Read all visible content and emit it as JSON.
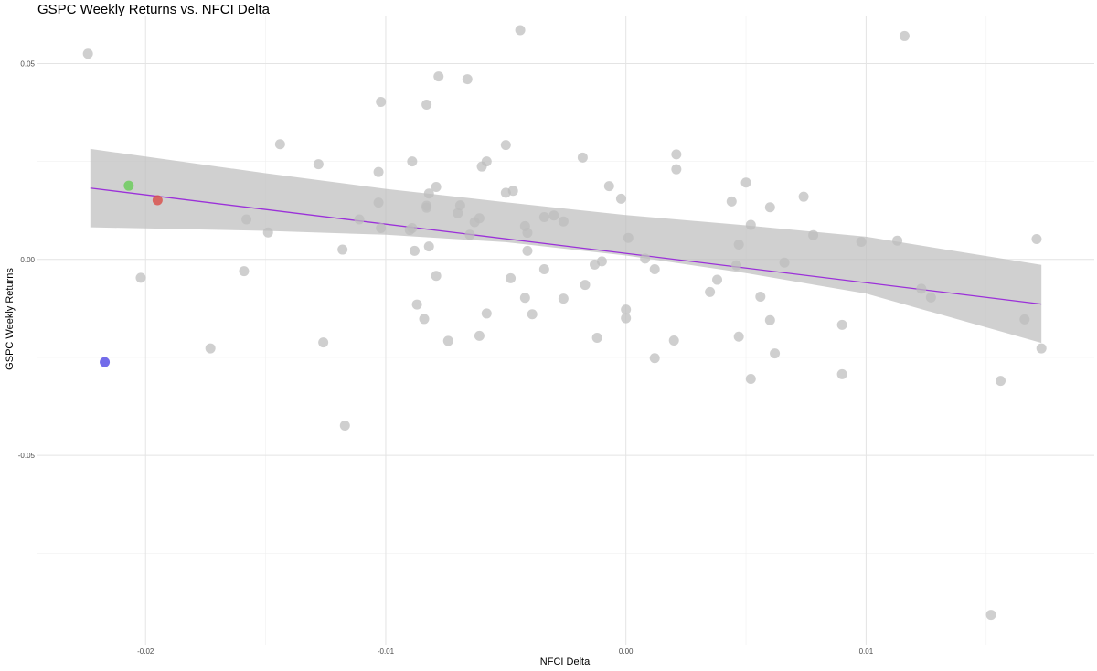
{
  "chart_data": {
    "type": "scatter",
    "title": "GSPC Weekly Returns vs. NFCI Delta",
    "xlabel": "NFCI Delta",
    "ylabel": "GSPC Weekly Returns",
    "xlim": [
      -0.0245,
      0.0195
    ],
    "ylim": [
      -0.0985,
      0.062
    ],
    "grid": true,
    "legend": "none",
    "x_ticks": [
      -0.02,
      -0.01,
      0.0,
      0.01
    ],
    "x_tick_labels": [
      "-0.02",
      "-0.01",
      "0.00",
      "0.01"
    ],
    "y_ticks": [
      0.05,
      0.0,
      -0.05
    ],
    "y_tick_labels": [
      "0.05",
      "0.00",
      "-0.05"
    ],
    "point_color": "#bdbdbd",
    "fit_line_color": "#9b30d9",
    "band_color": "#bebebe",
    "fit_line": {
      "x": [
        -0.0223,
        0.0173
      ],
      "y": [
        0.0182,
        -0.0114
      ]
    },
    "confidence_band": {
      "x": [
        -0.0223,
        -0.015,
        -0.01,
        -0.005,
        0.0,
        0.005,
        0.01,
        0.0173
      ],
      "lower": [
        0.0082,
        0.0073,
        0.0063,
        0.0044,
        0.001,
        -0.0035,
        -0.0087,
        -0.0213
      ],
      "upper": [
        0.0282,
        0.022,
        0.018,
        0.0146,
        0.0113,
        0.0087,
        0.0058,
        -0.0014
      ]
    },
    "highlighted_points": [
      {
        "x": -0.0207,
        "y": 0.0188,
        "color": "#6dcc5e"
      },
      {
        "x": -0.0195,
        "y": 0.0151,
        "color": "#d9534f"
      },
      {
        "x": -0.0217,
        "y": -0.0262,
        "color": "#5a52e6"
      }
    ],
    "points": [
      {
        "x": -0.0224,
        "y": 0.0525
      },
      {
        "x": -0.0202,
        "y": -0.0047
      },
      {
        "x": -0.0173,
        "y": -0.0227
      },
      {
        "x": -0.0158,
        "y": 0.0102
      },
      {
        "x": -0.0159,
        "y": -0.003
      },
      {
        "x": -0.0149,
        "y": 0.0069
      },
      {
        "x": -0.0144,
        "y": 0.0294
      },
      {
        "x": -0.0128,
        "y": 0.0243
      },
      {
        "x": -0.0126,
        "y": -0.0212
      },
      {
        "x": -0.0118,
        "y": 0.0025
      },
      {
        "x": -0.0117,
        "y": -0.0424
      },
      {
        "x": -0.0111,
        "y": 0.0102
      },
      {
        "x": -0.0102,
        "y": 0.0402
      },
      {
        "x": -0.0103,
        "y": 0.0223
      },
      {
        "x": -0.0103,
        "y": 0.0145
      },
      {
        "x": -0.0102,
        "y": 0.008
      },
      {
        "x": -0.0089,
        "y": 0.025
      },
      {
        "x": -0.0089,
        "y": 0.008
      },
      {
        "x": -0.009,
        "y": 0.0075
      },
      {
        "x": -0.0088,
        "y": 0.0022
      },
      {
        "x": -0.0087,
        "y": -0.0115
      },
      {
        "x": -0.0083,
        "y": 0.0137
      },
      {
        "x": -0.0083,
        "y": 0.0132
      },
      {
        "x": -0.0083,
        "y": 0.0395
      },
      {
        "x": -0.0082,
        "y": 0.0168
      },
      {
        "x": -0.0082,
        "y": 0.0033
      },
      {
        "x": -0.0084,
        "y": -0.0152
      },
      {
        "x": -0.0078,
        "y": 0.0467
      },
      {
        "x": -0.0079,
        "y": 0.0185
      },
      {
        "x": -0.0079,
        "y": -0.0042
      },
      {
        "x": -0.0074,
        "y": -0.0208
      },
      {
        "x": -0.007,
        "y": 0.0118
      },
      {
        "x": -0.0069,
        "y": 0.0138
      },
      {
        "x": -0.0066,
        "y": 0.046
      },
      {
        "x": -0.0065,
        "y": 0.0063
      },
      {
        "x": -0.0063,
        "y": 0.0095
      },
      {
        "x": -0.0061,
        "y": 0.0105
      },
      {
        "x": -0.006,
        "y": 0.0237
      },
      {
        "x": -0.0061,
        "y": -0.0195
      },
      {
        "x": -0.0058,
        "y": 0.025
      },
      {
        "x": -0.0058,
        "y": -0.0138
      },
      {
        "x": -0.005,
        "y": 0.0292
      },
      {
        "x": -0.005,
        "y": 0.017
      },
      {
        "x": -0.0047,
        "y": 0.0175
      },
      {
        "x": -0.0048,
        "y": -0.0048
      },
      {
        "x": -0.0044,
        "y": 0.0585
      },
      {
        "x": -0.0042,
        "y": 0.0085
      },
      {
        "x": -0.0041,
        "y": 0.0068
      },
      {
        "x": -0.0041,
        "y": 0.0022
      },
      {
        "x": -0.0042,
        "y": -0.0098
      },
      {
        "x": -0.0039,
        "y": -0.014
      },
      {
        "x": -0.0034,
        "y": 0.0108
      },
      {
        "x": -0.003,
        "y": 0.0112
      },
      {
        "x": -0.0034,
        "y": -0.0025
      },
      {
        "x": -0.0026,
        "y": 0.0097
      },
      {
        "x": -0.0026,
        "y": -0.01
      },
      {
        "x": -0.0018,
        "y": 0.026
      },
      {
        "x": -0.0017,
        "y": -0.0065
      },
      {
        "x": -0.0013,
        "y": -0.0013
      },
      {
        "x": -0.0012,
        "y": -0.02
      },
      {
        "x": -0.001,
        "y": -0.0005
      },
      {
        "x": -0.0007,
        "y": 0.0187
      },
      {
        "x": -0.0002,
        "y": 0.0155
      },
      {
        "x": 0.0001,
        "y": 0.0055
      },
      {
        "x": 0.0,
        "y": -0.0128
      },
      {
        "x": 0.0,
        "y": -0.015
      },
      {
        "x": 0.0008,
        "y": 0.0002
      },
      {
        "x": 0.0012,
        "y": -0.0025
      },
      {
        "x": 0.0012,
        "y": -0.0252
      },
      {
        "x": 0.002,
        "y": -0.0207
      },
      {
        "x": 0.0021,
        "y": 0.023
      },
      {
        "x": 0.0021,
        "y": 0.0268
      },
      {
        "x": 0.0035,
        "y": -0.0083
      },
      {
        "x": 0.0038,
        "y": -0.0052
      },
      {
        "x": 0.0044,
        "y": 0.0148
      },
      {
        "x": 0.0046,
        "y": -0.0015
      },
      {
        "x": 0.0047,
        "y": 0.0038
      },
      {
        "x": 0.0047,
        "y": -0.0197
      },
      {
        "x": 0.005,
        "y": 0.0196
      },
      {
        "x": 0.0052,
        "y": 0.0088
      },
      {
        "x": 0.0052,
        "y": -0.0305
      },
      {
        "x": 0.0056,
        "y": -0.0095
      },
      {
        "x": 0.006,
        "y": 0.0133
      },
      {
        "x": 0.006,
        "y": -0.0155
      },
      {
        "x": 0.0062,
        "y": -0.024
      },
      {
        "x": 0.0066,
        "y": -0.0008
      },
      {
        "x": 0.0074,
        "y": 0.016
      },
      {
        "x": 0.0078,
        "y": 0.0062
      },
      {
        "x": 0.009,
        "y": -0.0167
      },
      {
        "x": 0.009,
        "y": -0.0293
      },
      {
        "x": 0.0098,
        "y": 0.0045
      },
      {
        "x": 0.0113,
        "y": 0.0048
      },
      {
        "x": 0.0116,
        "y": 0.057
      },
      {
        "x": 0.0123,
        "y": -0.0075
      },
      {
        "x": 0.0127,
        "y": -0.0097
      },
      {
        "x": 0.0152,
        "y": -0.0907
      },
      {
        "x": 0.0156,
        "y": -0.031
      },
      {
        "x": 0.0166,
        "y": -0.0153
      },
      {
        "x": 0.0171,
        "y": 0.0052
      },
      {
        "x": 0.0173,
        "y": -0.0227
      }
    ]
  }
}
